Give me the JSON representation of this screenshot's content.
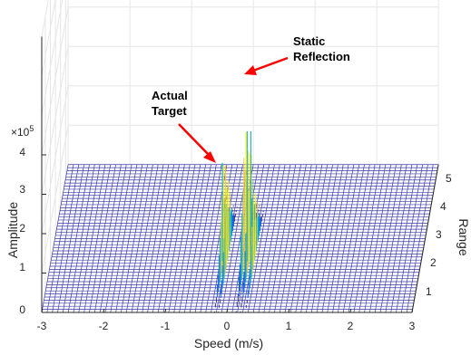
{
  "chart_data": {
    "type": "surface",
    "title": "",
    "xlabel": "Speed (m/s)",
    "ylabel": "Range",
    "zlabel": "Amplitude",
    "xlim": [
      -3,
      3
    ],
    "ylim": [
      0.3,
      5.5
    ],
    "zlim": [
      0,
      400000
    ],
    "x_ticks": [
      "-3",
      "-2",
      "-1",
      "0",
      "1",
      "2",
      "3"
    ],
    "y_ticks": [
      "1",
      "2",
      "3",
      "4",
      "5"
    ],
    "z_ticks": [
      "0",
      "1",
      "2",
      "3",
      "4"
    ],
    "z_exponent_base": "×10",
    "z_exponent_power": "5",
    "grid": true,
    "colormap": "parula",
    "peaks": [
      {
        "name": "Actual Target",
        "speed": -0.2,
        "range": 2.2,
        "amplitude": 250000
      },
      {
        "name": "Static Reflection",
        "speed": 0.0,
        "range": 2.0,
        "amplitude": 330000
      }
    ],
    "annotations": [
      {
        "id": "target",
        "lines": [
          "Actual",
          "Target"
        ]
      },
      {
        "id": "static",
        "lines": [
          "Static",
          "Reflection"
        ]
      }
    ],
    "arrow_color": "#ff0000"
  }
}
